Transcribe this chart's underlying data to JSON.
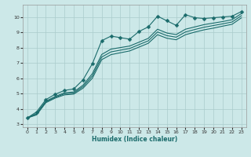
{
  "xlabel": "Humidex (Indice chaleur)",
  "bg_color": "#cce8e8",
  "grid_color": "#aacccc",
  "line_color": "#1a6b6b",
  "xlim": [
    -0.5,
    23.5
  ],
  "ylim": [
    2.8,
    10.8
  ],
  "xticks": [
    0,
    1,
    2,
    3,
    4,
    5,
    6,
    7,
    8,
    9,
    10,
    11,
    12,
    13,
    14,
    15,
    16,
    17,
    18,
    19,
    20,
    21,
    22,
    23
  ],
  "yticks": [
    3,
    4,
    5,
    6,
    7,
    8,
    9,
    10
  ],
  "lines": [
    {
      "x": [
        0,
        1,
        2,
        3,
        4,
        5,
        6,
        7,
        8,
        9,
        10,
        11,
        12,
        13,
        14,
        15,
        16,
        17,
        18,
        19,
        20,
        21,
        22,
        23
      ],
      "y": [
        3.4,
        3.8,
        4.6,
        4.95,
        5.2,
        5.3,
        5.9,
        6.95,
        8.45,
        8.75,
        8.65,
        8.55,
        9.05,
        9.35,
        10.05,
        9.75,
        9.45,
        10.15,
        9.95,
        9.9,
        9.95,
        10.0,
        10.05,
        10.35
      ],
      "marker": "D",
      "markersize": 2.5,
      "lw": 0.8
    },
    {
      "x": [
        0,
        1,
        2,
        3,
        4,
        5,
        6,
        7,
        8,
        9,
        10,
        11,
        12,
        13,
        14,
        15,
        16,
        17,
        18,
        19,
        20,
        21,
        22,
        23
      ],
      "y": [
        3.4,
        3.7,
        4.5,
        4.8,
        5.05,
        5.1,
        5.55,
        6.3,
        7.55,
        7.9,
        8.0,
        8.1,
        8.35,
        8.6,
        9.2,
        8.95,
        8.85,
        9.2,
        9.35,
        9.5,
        9.6,
        9.7,
        9.82,
        10.22
      ],
      "marker": null,
      "markersize": 0,
      "lw": 0.8
    },
    {
      "x": [
        0,
        1,
        2,
        3,
        4,
        5,
        6,
        7,
        8,
        9,
        10,
        11,
        12,
        13,
        14,
        15,
        16,
        17,
        18,
        19,
        20,
        21,
        22,
        23
      ],
      "y": [
        3.4,
        3.65,
        4.45,
        4.75,
        4.98,
        5.03,
        5.45,
        6.15,
        7.38,
        7.72,
        7.83,
        7.94,
        8.19,
        8.44,
        9.02,
        8.78,
        8.68,
        9.02,
        9.18,
        9.33,
        9.44,
        9.55,
        9.67,
        10.08
      ],
      "marker": null,
      "markersize": 0,
      "lw": 0.8
    },
    {
      "x": [
        0,
        1,
        2,
        3,
        4,
        5,
        6,
        7,
        8,
        9,
        10,
        11,
        12,
        13,
        14,
        15,
        16,
        17,
        18,
        19,
        20,
        21,
        22,
        23
      ],
      "y": [
        3.4,
        3.6,
        4.4,
        4.7,
        4.91,
        4.96,
        5.35,
        6.0,
        7.21,
        7.54,
        7.66,
        7.78,
        8.03,
        8.28,
        8.84,
        8.61,
        8.51,
        8.84,
        9.01,
        9.16,
        9.27,
        9.4,
        9.52,
        9.94
      ],
      "marker": null,
      "markersize": 0,
      "lw": 0.8
    }
  ]
}
